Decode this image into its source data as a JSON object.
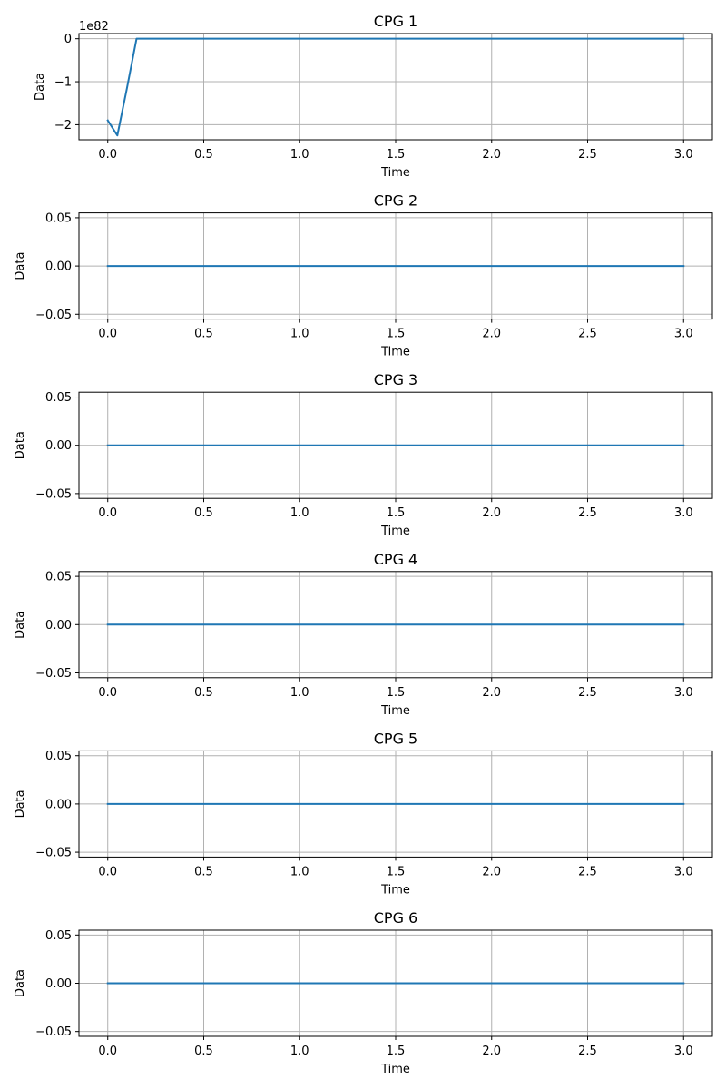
{
  "figure": {
    "background": "#ffffff",
    "line_color": "#1f77b4",
    "grid_color": "#b0b0b0"
  },
  "chart_data": [
    {
      "type": "line",
      "title": "CPG 1",
      "xlabel": "Time",
      "ylabel": "Data",
      "xlim": [
        -0.15,
        3.15
      ],
      "ylim": [
        -2.35,
        0.12
      ],
      "y_offset_label": "1e82",
      "xticks": [
        0.0,
        0.5,
        1.0,
        1.5,
        2.0,
        2.5,
        3.0
      ],
      "xtick_labels": [
        "0.0",
        "0.5",
        "1.0",
        "1.5",
        "2.0",
        "2.5",
        "3.0"
      ],
      "yticks": [
        -2,
        -1,
        0
      ],
      "ytick_labels": [
        "−2",
        "−1",
        "0"
      ],
      "grid": true,
      "series": [
        {
          "x": [
            0.0,
            0.05,
            0.1,
            0.15,
            0.2,
            3.0
          ],
          "y": [
            -1.9,
            -2.25,
            -1.15,
            0.0,
            0.0,
            0.0
          ]
        }
      ]
    },
    {
      "type": "line",
      "title": "CPG 2",
      "xlabel": "Time",
      "ylabel": "Data",
      "xlim": [
        -0.15,
        3.15
      ],
      "ylim": [
        -0.055,
        0.055
      ],
      "xticks": [
        0.0,
        0.5,
        1.0,
        1.5,
        2.0,
        2.5,
        3.0
      ],
      "xtick_labels": [
        "0.0",
        "0.5",
        "1.0",
        "1.5",
        "2.0",
        "2.5",
        "3.0"
      ],
      "yticks": [
        -0.05,
        0.0,
        0.05
      ],
      "ytick_labels": [
        "−0.05",
        "0.00",
        "0.05"
      ],
      "grid": true,
      "series": [
        {
          "x": [
            0.0,
            3.0
          ],
          "y": [
            0.0,
            0.0
          ]
        }
      ]
    },
    {
      "type": "line",
      "title": "CPG 3",
      "xlabel": "Time",
      "ylabel": "Data",
      "xlim": [
        -0.15,
        3.15
      ],
      "ylim": [
        -0.055,
        0.055
      ],
      "xticks": [
        0.0,
        0.5,
        1.0,
        1.5,
        2.0,
        2.5,
        3.0
      ],
      "xtick_labels": [
        "0.0",
        "0.5",
        "1.0",
        "1.5",
        "2.0",
        "2.5",
        "3.0"
      ],
      "yticks": [
        -0.05,
        0.0,
        0.05
      ],
      "ytick_labels": [
        "−0.05",
        "0.00",
        "0.05"
      ],
      "grid": true,
      "series": [
        {
          "x": [
            0.0,
            3.0
          ],
          "y": [
            0.0,
            0.0
          ]
        }
      ]
    },
    {
      "type": "line",
      "title": "CPG 4",
      "xlabel": "Time",
      "ylabel": "Data",
      "xlim": [
        -0.15,
        3.15
      ],
      "ylim": [
        -0.055,
        0.055
      ],
      "xticks": [
        0.0,
        0.5,
        1.0,
        1.5,
        2.0,
        2.5,
        3.0
      ],
      "xtick_labels": [
        "0.0",
        "0.5",
        "1.0",
        "1.5",
        "2.0",
        "2.5",
        "3.0"
      ],
      "yticks": [
        -0.05,
        0.0,
        0.05
      ],
      "ytick_labels": [
        "−0.05",
        "0.00",
        "0.05"
      ],
      "grid": true,
      "series": [
        {
          "x": [
            0.0,
            3.0
          ],
          "y": [
            0.0,
            0.0
          ]
        }
      ]
    },
    {
      "type": "line",
      "title": "CPG 5",
      "xlabel": "Time",
      "ylabel": "Data",
      "xlim": [
        -0.15,
        3.15
      ],
      "ylim": [
        -0.055,
        0.055
      ],
      "xticks": [
        0.0,
        0.5,
        1.0,
        1.5,
        2.0,
        2.5,
        3.0
      ],
      "xtick_labels": [
        "0.0",
        "0.5",
        "1.0",
        "1.5",
        "2.0",
        "2.5",
        "3.0"
      ],
      "yticks": [
        -0.05,
        0.0,
        0.05
      ],
      "ytick_labels": [
        "−0.05",
        "0.00",
        "0.05"
      ],
      "grid": true,
      "series": [
        {
          "x": [
            0.0,
            3.0
          ],
          "y": [
            0.0,
            0.0
          ]
        }
      ]
    },
    {
      "type": "line",
      "title": "CPG 6",
      "xlabel": "Time",
      "ylabel": "Data",
      "xlim": [
        -0.15,
        3.15
      ],
      "ylim": [
        -0.055,
        0.055
      ],
      "xticks": [
        0.0,
        0.5,
        1.0,
        1.5,
        2.0,
        2.5,
        3.0
      ],
      "xtick_labels": [
        "0.0",
        "0.5",
        "1.0",
        "1.5",
        "2.0",
        "2.5",
        "3.0"
      ],
      "yticks": [
        -0.05,
        0.0,
        0.05
      ],
      "ytick_labels": [
        "−0.05",
        "0.00",
        "0.05"
      ],
      "grid": true,
      "series": [
        {
          "x": [
            0.0,
            3.0
          ],
          "y": [
            0.0,
            0.0
          ]
        }
      ]
    }
  ]
}
